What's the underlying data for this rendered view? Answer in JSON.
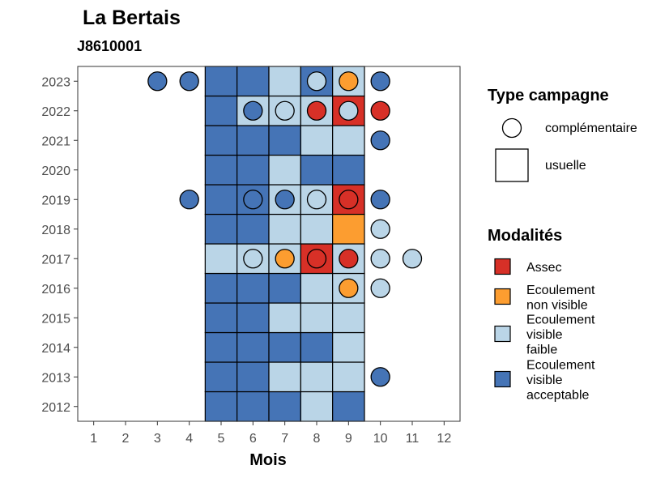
{
  "chart_data": {
    "type": "heatmap",
    "title": "La Bertais",
    "subtitle": "J8610001",
    "xlabel": "Mois",
    "ylabel": "",
    "x_ticks": [
      1,
      2,
      3,
      4,
      5,
      6,
      7,
      8,
      9,
      10,
      11,
      12
    ],
    "y_ticks": [
      2012,
      2013,
      2014,
      2015,
      2016,
      2017,
      2018,
      2019,
      2020,
      2021,
      2022,
      2023
    ],
    "xlim": [
      0.5,
      12.5
    ],
    "ylim": [
      2011.5,
      2023.5
    ],
    "legend_placement": "right",
    "colors": {
      "Assec": "#d73027",
      "Ecoulement non visible": "#fc9d30",
      "Ecoulement visible faible": "#bad5e7",
      "Ecoulement visible acceptable": "#4574b6"
    },
    "legend_campaign": {
      "title": "Type campagne",
      "items": [
        {
          "label": "complémentaire",
          "shape": "circle"
        },
        {
          "label": "usuelle",
          "shape": "square"
        }
      ]
    },
    "legend_modalites": {
      "title": "Modalités",
      "items": [
        {
          "key": "Assec",
          "lines": [
            "Assec"
          ]
        },
        {
          "key": "Ecoulement non visible",
          "lines": [
            "Ecoulement",
            "non visible"
          ]
        },
        {
          "key": "Ecoulement visible faible",
          "lines": [
            "Ecoulement",
            "visible",
            "faible"
          ]
        },
        {
          "key": "Ecoulement visible acceptable",
          "lines": [
            "Ecoulement",
            "visible",
            "acceptable"
          ]
        }
      ]
    },
    "usuelle": [
      {
        "year": 2012,
        "month": 5,
        "modalite": "Ecoulement visible acceptable"
      },
      {
        "year": 2012,
        "month": 6,
        "modalite": "Ecoulement visible acceptable"
      },
      {
        "year": 2012,
        "month": 7,
        "modalite": "Ecoulement visible acceptable"
      },
      {
        "year": 2012,
        "month": 8,
        "modalite": "Ecoulement visible faible"
      },
      {
        "year": 2012,
        "month": 9,
        "modalite": "Ecoulement visible acceptable"
      },
      {
        "year": 2013,
        "month": 5,
        "modalite": "Ecoulement visible acceptable"
      },
      {
        "year": 2013,
        "month": 6,
        "modalite": "Ecoulement visible acceptable"
      },
      {
        "year": 2013,
        "month": 7,
        "modalite": "Ecoulement visible faible"
      },
      {
        "year": 2013,
        "month": 8,
        "modalite": "Ecoulement visible faible"
      },
      {
        "year": 2013,
        "month": 9,
        "modalite": "Ecoulement visible faible"
      },
      {
        "year": 2014,
        "month": 5,
        "modalite": "Ecoulement visible acceptable"
      },
      {
        "year": 2014,
        "month": 6,
        "modalite": "Ecoulement visible acceptable"
      },
      {
        "year": 2014,
        "month": 7,
        "modalite": "Ecoulement visible acceptable"
      },
      {
        "year": 2014,
        "month": 8,
        "modalite": "Ecoulement visible acceptable"
      },
      {
        "year": 2014,
        "month": 9,
        "modalite": "Ecoulement visible faible"
      },
      {
        "year": 2015,
        "month": 5,
        "modalite": "Ecoulement visible acceptable"
      },
      {
        "year": 2015,
        "month": 6,
        "modalite": "Ecoulement visible acceptable"
      },
      {
        "year": 2015,
        "month": 7,
        "modalite": "Ecoulement visible faible"
      },
      {
        "year": 2015,
        "month": 8,
        "modalite": "Ecoulement visible faible"
      },
      {
        "year": 2015,
        "month": 9,
        "modalite": "Ecoulement visible faible"
      },
      {
        "year": 2016,
        "month": 5,
        "modalite": "Ecoulement visible acceptable"
      },
      {
        "year": 2016,
        "month": 6,
        "modalite": "Ecoulement visible acceptable"
      },
      {
        "year": 2016,
        "month": 7,
        "modalite": "Ecoulement visible acceptable"
      },
      {
        "year": 2016,
        "month": 8,
        "modalite": "Ecoulement visible faible"
      },
      {
        "year": 2016,
        "month": 9,
        "modalite": "Ecoulement visible faible"
      },
      {
        "year": 2017,
        "month": 5,
        "modalite": "Ecoulement visible faible"
      },
      {
        "year": 2017,
        "month": 6,
        "modalite": "Ecoulement visible faible"
      },
      {
        "year": 2017,
        "month": 7,
        "modalite": "Ecoulement visible faible"
      },
      {
        "year": 2017,
        "month": 8,
        "modalite": "Assec"
      },
      {
        "year": 2017,
        "month": 9,
        "modalite": "Ecoulement visible faible"
      },
      {
        "year": 2018,
        "month": 5,
        "modalite": "Ecoulement visible acceptable"
      },
      {
        "year": 2018,
        "month": 6,
        "modalite": "Ecoulement visible acceptable"
      },
      {
        "year": 2018,
        "month": 7,
        "modalite": "Ecoulement visible faible"
      },
      {
        "year": 2018,
        "month": 8,
        "modalite": "Ecoulement visible faible"
      },
      {
        "year": 2018,
        "month": 9,
        "modalite": "Ecoulement non visible"
      },
      {
        "year": 2019,
        "month": 5,
        "modalite": "Ecoulement visible acceptable"
      },
      {
        "year": 2019,
        "month": 6,
        "modalite": "Ecoulement visible acceptable"
      },
      {
        "year": 2019,
        "month": 7,
        "modalite": "Ecoulement visible faible"
      },
      {
        "year": 2019,
        "month": 8,
        "modalite": "Ecoulement visible faible"
      },
      {
        "year": 2019,
        "month": 9,
        "modalite": "Assec"
      },
      {
        "year": 2020,
        "month": 5,
        "modalite": "Ecoulement visible acceptable"
      },
      {
        "year": 2020,
        "month": 6,
        "modalite": "Ecoulement visible acceptable"
      },
      {
        "year": 2020,
        "month": 7,
        "modalite": "Ecoulement visible faible"
      },
      {
        "year": 2020,
        "month": 8,
        "modalite": "Ecoulement visible acceptable"
      },
      {
        "year": 2020,
        "month": 9,
        "modalite": "Ecoulement visible acceptable"
      },
      {
        "year": 2021,
        "month": 5,
        "modalite": "Ecoulement visible acceptable"
      },
      {
        "year": 2021,
        "month": 6,
        "modalite": "Ecoulement visible acceptable"
      },
      {
        "year": 2021,
        "month": 7,
        "modalite": "Ecoulement visible acceptable"
      },
      {
        "year": 2021,
        "month": 8,
        "modalite": "Ecoulement visible faible"
      },
      {
        "year": 2021,
        "month": 9,
        "modalite": "Ecoulement visible faible"
      },
      {
        "year": 2022,
        "month": 5,
        "modalite": "Ecoulement visible acceptable"
      },
      {
        "year": 2022,
        "month": 6,
        "modalite": "Ecoulement visible faible"
      },
      {
        "year": 2022,
        "month": 7,
        "modalite": "Ecoulement visible faible"
      },
      {
        "year": 2022,
        "month": 8,
        "modalite": "Ecoulement visible faible"
      },
      {
        "year": 2022,
        "month": 9,
        "modalite": "Assec"
      },
      {
        "year": 2023,
        "month": 5,
        "modalite": "Ecoulement visible acceptable"
      },
      {
        "year": 2023,
        "month": 6,
        "modalite": "Ecoulement visible acceptable"
      },
      {
        "year": 2023,
        "month": 7,
        "modalite": "Ecoulement visible faible"
      },
      {
        "year": 2023,
        "month": 8,
        "modalite": "Ecoulement visible acceptable"
      },
      {
        "year": 2023,
        "month": 9,
        "modalite": "Ecoulement visible faible"
      }
    ],
    "complementaire": [
      {
        "year": 2013,
        "month": 10,
        "modalite": "Ecoulement visible acceptable"
      },
      {
        "year": 2016,
        "month": 9,
        "modalite": "Ecoulement non visible"
      },
      {
        "year": 2016,
        "month": 10,
        "modalite": "Ecoulement visible faible"
      },
      {
        "year": 2017,
        "month": 6,
        "modalite": "Ecoulement visible faible"
      },
      {
        "year": 2017,
        "month": 7,
        "modalite": "Ecoulement non visible"
      },
      {
        "year": 2017,
        "month": 8,
        "modalite": "Assec"
      },
      {
        "year": 2017,
        "month": 9,
        "modalite": "Assec"
      },
      {
        "year": 2017,
        "month": 10,
        "modalite": "Ecoulement visible faible"
      },
      {
        "year": 2017,
        "month": 11,
        "modalite": "Ecoulement visible faible"
      },
      {
        "year": 2018,
        "month": 10,
        "modalite": "Ecoulement visible faible"
      },
      {
        "year": 2019,
        "month": 4,
        "modalite": "Ecoulement visible acceptable"
      },
      {
        "year": 2019,
        "month": 6,
        "modalite": "Ecoulement visible acceptable"
      },
      {
        "year": 2019,
        "month": 7,
        "modalite": "Ecoulement visible acceptable"
      },
      {
        "year": 2019,
        "month": 8,
        "modalite": "Ecoulement visible faible"
      },
      {
        "year": 2019,
        "month": 9,
        "modalite": "Assec"
      },
      {
        "year": 2019,
        "month": 10,
        "modalite": "Ecoulement visible acceptable"
      },
      {
        "year": 2021,
        "month": 10,
        "modalite": "Ecoulement visible acceptable"
      },
      {
        "year": 2022,
        "month": 6,
        "modalite": "Ecoulement visible acceptable"
      },
      {
        "year": 2022,
        "month": 7,
        "modalite": "Ecoulement visible faible"
      },
      {
        "year": 2022,
        "month": 8,
        "modalite": "Assec"
      },
      {
        "year": 2022,
        "month": 9,
        "modalite": "Ecoulement visible faible"
      },
      {
        "year": 2022,
        "month": 10,
        "modalite": "Assec"
      },
      {
        "year": 2023,
        "month": 3,
        "modalite": "Ecoulement visible acceptable"
      },
      {
        "year": 2023,
        "month": 4,
        "modalite": "Ecoulement visible acceptable"
      },
      {
        "year": 2023,
        "month": 8,
        "modalite": "Ecoulement visible faible"
      },
      {
        "year": 2023,
        "month": 9,
        "modalite": "Ecoulement non visible"
      },
      {
        "year": 2023,
        "month": 10,
        "modalite": "Ecoulement visible acceptable"
      }
    ]
  }
}
